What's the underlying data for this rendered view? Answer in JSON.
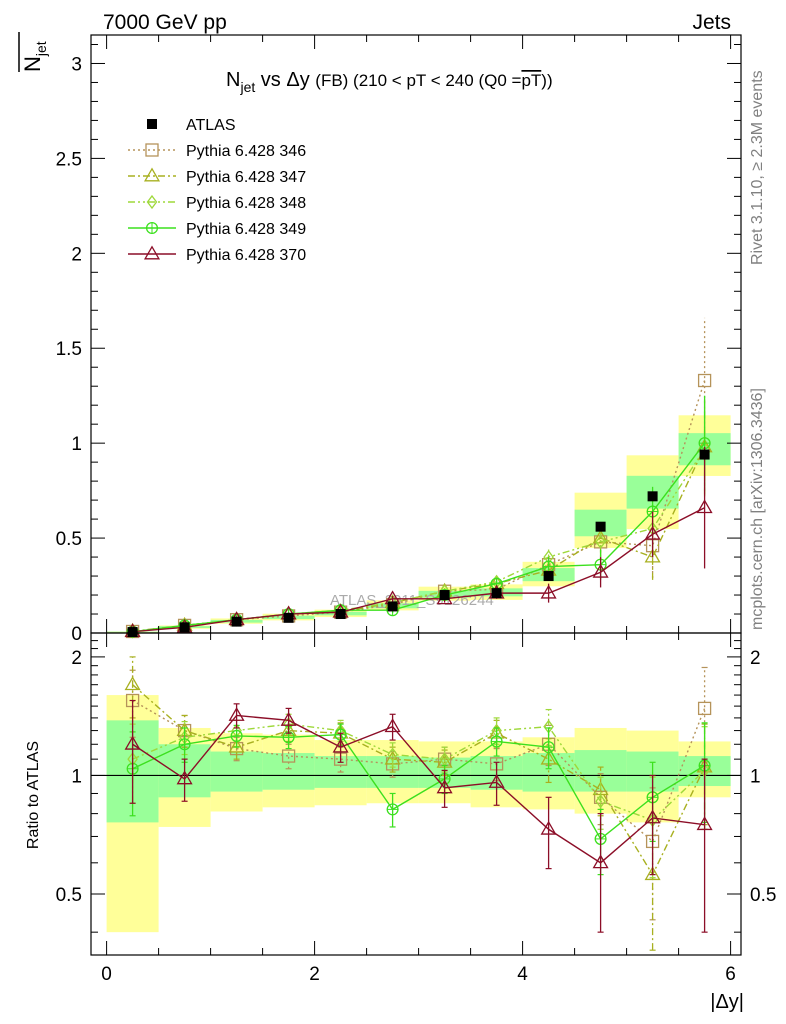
{
  "header": {
    "left": "7000 GeV pp",
    "right": "Jets"
  },
  "side_texts": {
    "rivet": "Rivet 3.1.10, ≥ 2.3M events",
    "mcplots": "mcplots.cern.ch [arXiv:1306.3436]"
  },
  "watermark": "ATLAS_2011_S9126244",
  "chart_data": {
    "type": "scatter",
    "title": {
      "main": "N",
      "main_sub": "jet",
      "middle": " vs Δy ",
      "tail": "(FB) (210 < pT < 240 (Q0 =",
      "overline": "pT",
      "close": "))"
    },
    "ylabel_top": {
      "base": "N",
      "sub": "jet"
    },
    "ylabel_ratio": "Ratio to ATLAS",
    "xlabel": "|Δy|",
    "xlim": [
      -0.15,
      6.1
    ],
    "ylim_top": [
      0,
      3.15
    ],
    "ylim_ratio": [
      0.35,
      2.3
    ],
    "ratio_log": true,
    "xticks": [
      0,
      2,
      4,
      6
    ],
    "xtick_labels": [
      "0",
      "2",
      "4",
      "6"
    ],
    "yticks_top": [
      0,
      0.5,
      1,
      1.5,
      2,
      2.5,
      3
    ],
    "ytick_labels_top": [
      "0",
      "0.5",
      "1",
      "1.5",
      "2",
      "2.5",
      "3"
    ],
    "yticks_ratio": [
      0.5,
      1,
      2
    ],
    "ytick_labels_ratio": [
      "0.5",
      "1",
      "2"
    ],
    "x": [
      0.25,
      0.75,
      1.25,
      1.75,
      2.25,
      2.75,
      3.25,
      3.75,
      4.25,
      4.75,
      5.25,
      5.75
    ],
    "data": {
      "name": "ATLAS",
      "values": [
        0.005,
        0.03,
        0.06,
        0.08,
        0.1,
        0.14,
        0.2,
        0.21,
        0.3,
        0.56,
        0.72,
        0.94
      ],
      "band_yellow": [
        [
          0.4,
          1.6
        ],
        [
          0.74,
          1.32
        ],
        [
          0.81,
          1.28
        ],
        [
          0.83,
          1.27
        ],
        [
          0.84,
          1.23
        ],
        [
          0.85,
          1.23
        ],
        [
          0.85,
          1.22
        ],
        [
          0.83,
          1.22
        ],
        [
          0.82,
          1.25
        ],
        [
          0.8,
          1.32
        ],
        [
          0.76,
          1.3
        ],
        [
          0.88,
          1.22
        ]
      ],
      "band_green": [
        [
          0.76,
          1.38
        ],
        [
          0.88,
          1.2
        ],
        [
          0.91,
          1.15
        ],
        [
          0.92,
          1.14
        ],
        [
          0.93,
          1.12
        ],
        [
          0.93,
          1.12
        ],
        [
          0.93,
          1.11
        ],
        [
          0.92,
          1.12
        ],
        [
          0.91,
          1.14
        ],
        [
          0.91,
          1.16
        ],
        [
          0.91,
          1.15
        ],
        [
          0.94,
          1.12
        ]
      ]
    },
    "series": [
      {
        "name": "Pythia 6.428 346",
        "color": "#b5935a",
        "marker": "square",
        "values": [
          0.008,
          0.04,
          0.07,
          0.09,
          0.11,
          0.15,
          0.22,
          0.23,
          0.36,
          0.48,
          0.46,
          1.33
        ],
        "yerr": [
          0.002,
          0.005,
          0.006,
          0.008,
          0.012,
          0.015,
          0.02,
          0.03,
          0.05,
          0.08,
          0.17,
          0.33
        ],
        "ratio": [
          1.55,
          1.3,
          1.17,
          1.12,
          1.1,
          1.07,
          1.1,
          1.07,
          1.2,
          0.88,
          0.68,
          1.48
        ],
        "ratio_err": [
          0.3,
          0.12,
          0.08,
          0.08,
          0.08,
          0.08,
          0.08,
          0.1,
          0.14,
          0.13,
          0.25,
          0.4
        ]
      },
      {
        "name": "Pythia 6.428 347",
        "color": "#a8b020",
        "marker": "triangle",
        "values": [
          0.009,
          0.04,
          0.07,
          0.1,
          0.11,
          0.16,
          0.22,
          0.26,
          0.33,
          0.5,
          0.4,
          0.98
        ],
        "yerr": [
          0.002,
          0.005,
          0.006,
          0.008,
          0.012,
          0.015,
          0.02,
          0.03,
          0.05,
          0.08,
          0.12,
          0.25
        ],
        "ratio": [
          1.7,
          1.3,
          1.18,
          1.3,
          1.28,
          1.1,
          1.08,
          1.28,
          1.1,
          0.92,
          0.56,
          1.05
        ],
        "ratio_err": [
          0.3,
          0.12,
          0.08,
          0.08,
          0.08,
          0.08,
          0.08,
          0.1,
          0.14,
          0.13,
          0.2,
          0.3
        ]
      },
      {
        "name": "Pythia 6.428 348",
        "color": "#9ed83a",
        "marker": "diamond",
        "values": [
          0.008,
          0.04,
          0.07,
          0.1,
          0.12,
          0.16,
          0.22,
          0.27,
          0.4,
          0.48,
          0.55,
          0.97
        ],
        "yerr": [
          0.002,
          0.005,
          0.006,
          0.008,
          0.012,
          0.015,
          0.02,
          0.03,
          0.05,
          0.08,
          0.15,
          0.25
        ],
        "ratio": [
          1.1,
          1.25,
          1.3,
          1.35,
          1.3,
          1.13,
          1.1,
          1.3,
          1.33,
          0.86,
          0.77,
          1.03
        ],
        "ratio_err": [
          0.25,
          0.12,
          0.08,
          0.08,
          0.08,
          0.08,
          0.08,
          0.1,
          0.14,
          0.13,
          0.22,
          0.3
        ]
      },
      {
        "name": "Pythia 6.428 349",
        "color": "#3ce01e",
        "marker": "circle",
        "values": [
          0.007,
          0.04,
          0.07,
          0.1,
          0.12,
          0.12,
          0.2,
          0.26,
          0.35,
          0.36,
          0.64,
          1.0
        ],
        "yerr": [
          0.002,
          0.005,
          0.006,
          0.008,
          0.012,
          0.015,
          0.02,
          0.03,
          0.05,
          0.08,
          0.13,
          0.25
        ],
        "ratio": [
          1.04,
          1.2,
          1.26,
          1.25,
          1.27,
          0.82,
          0.98,
          1.22,
          1.18,
          0.69,
          0.88,
          1.06
        ],
        "ratio_err": [
          0.25,
          0.12,
          0.08,
          0.08,
          0.08,
          0.08,
          0.08,
          0.1,
          0.14,
          0.13,
          0.2,
          0.3
        ]
      },
      {
        "name": "Pythia 6.428 370",
        "color": "#8c0e28",
        "marker": "triangle",
        "values": [
          0.007,
          0.03,
          0.07,
          0.1,
          0.11,
          0.18,
          0.18,
          0.21,
          0.21,
          0.32,
          0.52,
          0.66
        ],
        "yerr": [
          0.002,
          0.005,
          0.006,
          0.008,
          0.012,
          0.015,
          0.02,
          0.03,
          0.05,
          0.08,
          0.12,
          0.32
        ],
        "ratio": [
          1.2,
          0.98,
          1.42,
          1.38,
          1.18,
          1.33,
          0.93,
          0.96,
          0.73,
          0.6,
          0.78,
          0.75
        ],
        "ratio_err": [
          0.35,
          0.12,
          0.1,
          0.1,
          0.1,
          0.1,
          0.1,
          0.12,
          0.15,
          0.2,
          0.22,
          0.35
        ]
      }
    ]
  }
}
